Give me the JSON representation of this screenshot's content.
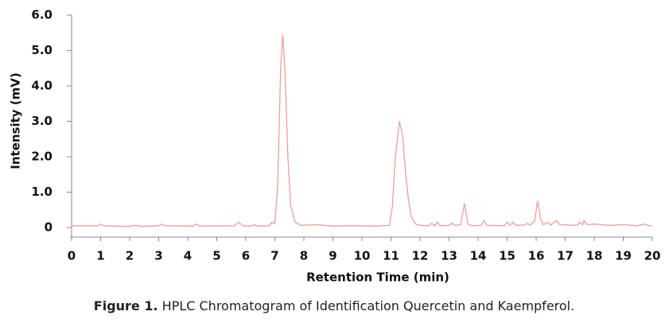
{
  "chart_data": {
    "type": "line",
    "xlabel": "Retention Time (min)",
    "ylabel": "Intensity (mV)",
    "caption": {
      "label": "Figure 1.",
      "text": "HPLC Chromatogram of Identification Quercetin and Kaempferol."
    },
    "color": "#e8a196",
    "xlim": [
      0,
      20
    ],
    "xticks": [
      0,
      1,
      2,
      3,
      4,
      5,
      6,
      7,
      8,
      9,
      10,
      11,
      12,
      13,
      14,
      15,
      16,
      17,
      18,
      19,
      20
    ],
    "ylim": [
      0,
      6
    ],
    "yticks": [
      0,
      {
        "value": 1,
        "label": "1.0"
      },
      {
        "value": 2,
        "label": "2.0"
      },
      {
        "value": 3,
        "label": "3.0"
      },
      {
        "value": 4,
        "label": "4.0"
      },
      {
        "value": 5,
        "label": "5.0"
      },
      {
        "value": 6,
        "label": "6.0"
      }
    ],
    "x": [
      0,
      0.9,
      1.0,
      1.1,
      2.0,
      2.2,
      2.4,
      3.0,
      3.1,
      3.2,
      4.2,
      4.3,
      4.4,
      5.6,
      5.75,
      5.9,
      6.2,
      6.3,
      6.4,
      6.8,
      6.9,
      7.0,
      7.1,
      7.2,
      7.27,
      7.35,
      7.45,
      7.55,
      7.7,
      7.9,
      8.4,
      9.0,
      9.6,
      10.5,
      10.95,
      11.05,
      11.15,
      11.29,
      11.4,
      11.5,
      11.6,
      11.7,
      11.85,
      12.0,
      12.3,
      12.4,
      12.5,
      12.6,
      12.7,
      13.0,
      13.1,
      13.2,
      13.4,
      13.53,
      13.65,
      13.8,
      14.1,
      14.2,
      14.3,
      14.9,
      15.0,
      15.1,
      15.2,
      15.3,
      15.6,
      15.7,
      15.8,
      15.95,
      16.05,
      16.15,
      16.25,
      16.4,
      16.5,
      16.7,
      16.8,
      17.4,
      17.5,
      17.6,
      17.65,
      17.75,
      18.0,
      18.5,
      19.0,
      19.5,
      19.7,
      19.9,
      20.0
    ],
    "values": [
      0.05,
      0.05,
      0.1,
      0.05,
      0.03,
      0.06,
      0.03,
      0.05,
      0.1,
      0.05,
      0.04,
      0.1,
      0.04,
      0.05,
      0.15,
      0.05,
      0.04,
      0.08,
      0.04,
      0.05,
      0.15,
      0.1,
      1.2,
      4.5,
      5.45,
      4.4,
      2.0,
      0.6,
      0.15,
      0.06,
      0.08,
      0.04,
      0.05,
      0.04,
      0.06,
      0.6,
      2.0,
      3.0,
      2.6,
      1.6,
      0.8,
      0.3,
      0.1,
      0.06,
      0.05,
      0.12,
      0.05,
      0.15,
      0.05,
      0.06,
      0.12,
      0.06,
      0.08,
      0.68,
      0.1,
      0.05,
      0.06,
      0.2,
      0.06,
      0.05,
      0.15,
      0.06,
      0.15,
      0.06,
      0.07,
      0.12,
      0.07,
      0.2,
      0.75,
      0.25,
      0.08,
      0.15,
      0.07,
      0.2,
      0.08,
      0.06,
      0.15,
      0.08,
      0.2,
      0.08,
      0.1,
      0.06,
      0.08,
      0.05,
      0.1,
      0.05,
      0.05
    ]
  }
}
